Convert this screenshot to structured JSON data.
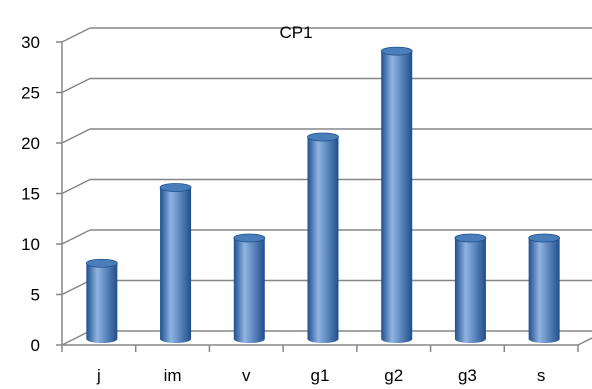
{
  "chart_data": {
    "type": "bar",
    "style": "3d-cylinder",
    "title": "CP1",
    "xlabel": "",
    "ylabel": "",
    "categories": [
      "j",
      "im",
      "v",
      "g1",
      "g2",
      "g3",
      "s"
    ],
    "values": [
      7.5,
      15,
      10,
      20,
      28.5,
      10,
      10
    ],
    "ylim": [
      0,
      30
    ],
    "yticks": [
      0,
      5,
      10,
      15,
      20,
      25,
      30
    ],
    "grid": true,
    "legend": "none",
    "colors": {
      "bar": "#4a7ebb",
      "bar_light": "#8fb4e3",
      "bar_dark": "#1f4f8c",
      "gridline": "#868686"
    }
  }
}
